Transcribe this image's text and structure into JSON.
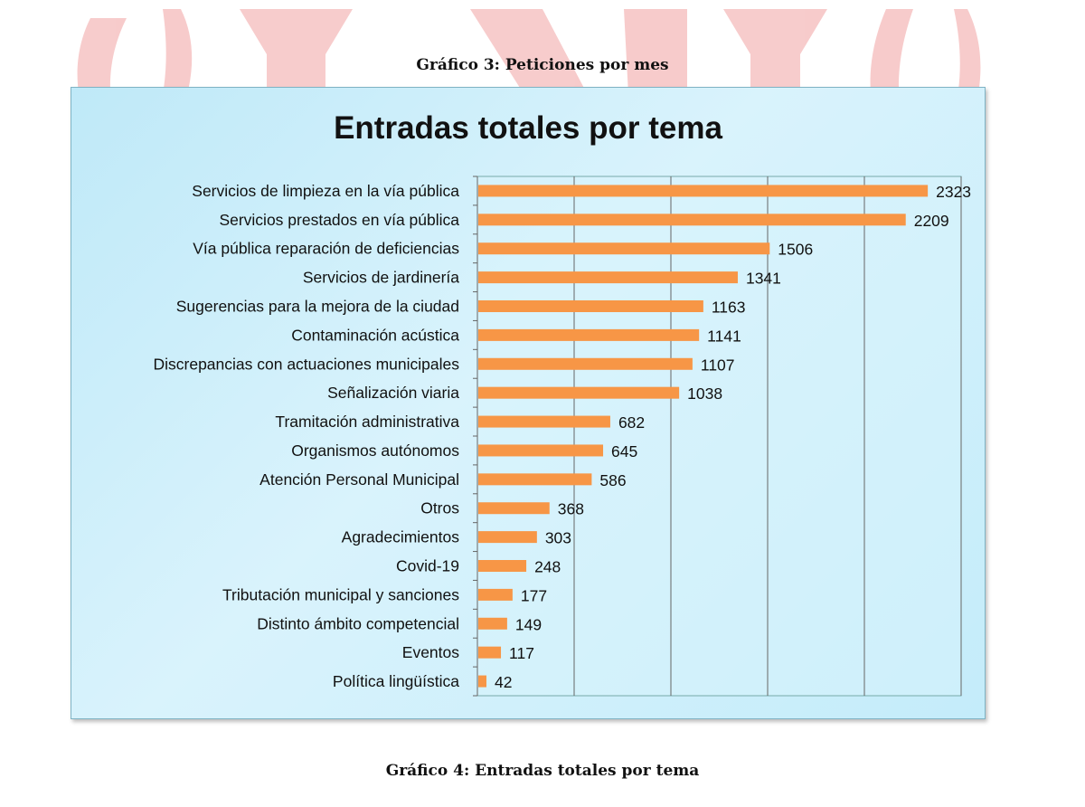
{
  "captions": {
    "above": "Gráfico 3: Peticiones por mes",
    "below": "Gráfico 4: Entradas totales por tema"
  },
  "chart_data": {
    "type": "bar",
    "orientation": "horizontal",
    "title": "Entradas totales por tema",
    "xlabel": "",
    "ylabel": "",
    "xlim": [
      0,
      2500
    ],
    "grid": "vertical lines every 500",
    "x_tick_labels_shown": false,
    "bar_color": "#f79646",
    "categories": [
      "Servicios de limpieza en la vía pública",
      "Servicios prestados en vía pública",
      "Vía pública reparación de deficiencias",
      "Servicios de jardinería",
      "Sugerencias para la mejora de la ciudad",
      "Contaminación acústica",
      "Discrepancias con actuaciones municipales",
      "Señalización viaria",
      "Tramitación administrativa",
      "Organismos autónomos",
      "Atención Personal Municipal",
      "Otros",
      "Agradecimientos",
      "Covid-19",
      "Tributación municipal y sanciones",
      "Distinto ámbito competencial",
      "Eventos",
      "Política lingüística"
    ],
    "values": [
      2323,
      2209,
      1506,
      1341,
      1163,
      1141,
      1107,
      1038,
      682,
      645,
      586,
      368,
      303,
      248,
      177,
      149,
      117,
      42
    ]
  }
}
